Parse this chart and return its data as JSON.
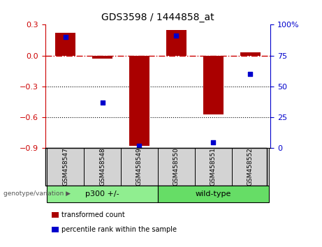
{
  "title": "GDS3598 / 1444858_at",
  "samples": [
    "GSM458547",
    "GSM458548",
    "GSM458549",
    "GSM458550",
    "GSM458551",
    "GSM458552"
  ],
  "transformed_count": [
    0.22,
    -0.03,
    -0.88,
    0.25,
    -0.57,
    0.03
  ],
  "percentile_rank": [
    90,
    37,
    2,
    91,
    5,
    60
  ],
  "left_ylim": [
    -0.9,
    0.3
  ],
  "right_ylim": [
    0,
    100
  ],
  "left_yticks": [
    -0.9,
    -0.6,
    -0.3,
    0.0,
    0.3
  ],
  "right_yticks": [
    0,
    25,
    50,
    75,
    100
  ],
  "bar_color": "#AA0000",
  "dot_color": "#0000CC",
  "hline_color": "#CC0000",
  "dotted_line_color": "black",
  "dotted_line_y": [
    -0.3,
    -0.6
  ],
  "groups": [
    {
      "label": "p300 +/-",
      "indices": [
        0,
        1,
        2
      ],
      "color": "#90EE90"
    },
    {
      "label": "wild-type",
      "indices": [
        3,
        4,
        5
      ],
      "color": "#66DD66"
    }
  ],
  "group_label_prefix": "genotype/variation",
  "legend_items": [
    {
      "label": "transformed count",
      "color": "#AA0000"
    },
    {
      "label": "percentile rank within the sample",
      "color": "#0000CC"
    }
  ],
  "bar_width": 0.55,
  "tick_label_color_left": "#CC0000",
  "tick_label_color_right": "#0000CC",
  "cell_bg": "#D3D3D3"
}
